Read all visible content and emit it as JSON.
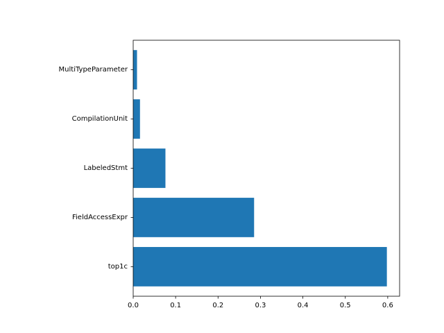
{
  "chart_data": {
    "type": "bar",
    "orientation": "horizontal",
    "categories": [
      "top1c",
      "FieldAccessExpr",
      "LabeledStmt",
      "CompilationUnit",
      "MultiTypeParameter"
    ],
    "values": [
      0.598,
      0.285,
      0.076,
      0.016,
      0.009
    ],
    "title": "",
    "xlabel": "",
    "ylabel": "",
    "xlim": [
      0,
      0.628
    ],
    "xticks": [
      0.0,
      0.1,
      0.2,
      0.3,
      0.4,
      0.5,
      0.6
    ],
    "xtick_labels": [
      "0.0",
      "0.1",
      "0.2",
      "0.3",
      "0.4",
      "0.5",
      "0.6"
    ],
    "grid": false,
    "legend": "none",
    "bar_color": "#1f77b4"
  }
}
